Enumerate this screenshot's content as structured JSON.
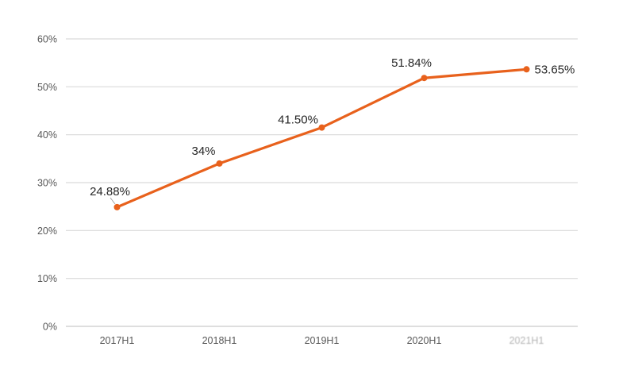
{
  "chart_data": {
    "type": "line",
    "title": "",
    "xlabel": "",
    "ylabel": "",
    "categories": [
      "2017H1",
      "2018H1",
      "2019H1",
      "2020H1",
      "2021H1"
    ],
    "values": [
      24.88,
      34,
      41.5,
      51.84,
      53.65
    ],
    "data_labels": [
      "24.88%",
      "34%",
      "41.50%",
      "51.84%",
      "53.65%"
    ],
    "y_ticks": [
      "0%",
      "10%",
      "20%",
      "30%",
      "40%",
      "50%",
      "60%"
    ],
    "y_tick_values": [
      0,
      10,
      20,
      30,
      40,
      50,
      60
    ],
    "ylim": [
      0,
      60
    ],
    "grid": true,
    "legend": "none",
    "last_x_label_degraded": true,
    "colors": {
      "line": "#e8611c",
      "marker": "#e8611c",
      "gridline": "#d9d9d9",
      "axis_line": "#c9c9c9",
      "axis_text": "#595959",
      "data_label_text": "#262626",
      "leader_line": "#a6a6a6",
      "background": "#ffffff"
    }
  }
}
